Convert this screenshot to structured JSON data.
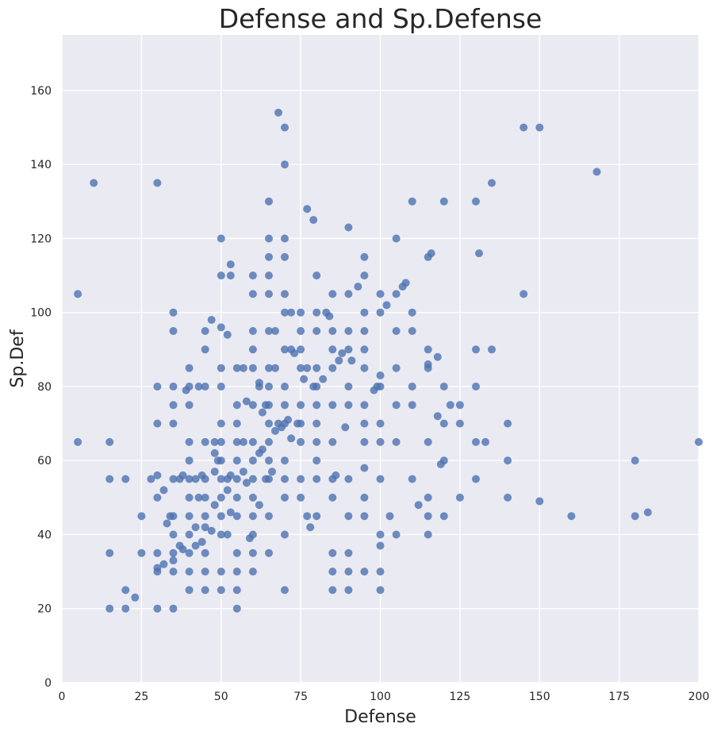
{
  "chart_data": {
    "type": "scatter",
    "title": "Defense and Sp.Defense",
    "xlabel": "Defense",
    "ylabel": "Sp.Def",
    "xlim": [
      0,
      200
    ],
    "ylim": [
      0,
      175
    ],
    "x_ticks": [
      0,
      25,
      50,
      75,
      100,
      125,
      150,
      175,
      200
    ],
    "y_ticks": [
      0,
      20,
      40,
      60,
      80,
      100,
      120,
      140,
      160
    ],
    "grid": true,
    "background": "#eaeaf2",
    "point_color": "#4c72b0",
    "points": [
      [
        5,
        105
      ],
      [
        5,
        65
      ],
      [
        10,
        135
      ],
      [
        15,
        65
      ],
      [
        15,
        55
      ],
      [
        15,
        35
      ],
      [
        15,
        20
      ],
      [
        20,
        55
      ],
      [
        20,
        25
      ],
      [
        20,
        20
      ],
      [
        23,
        23
      ],
      [
        25,
        45
      ],
      [
        25,
        35
      ],
      [
        28,
        55
      ],
      [
        30,
        135
      ],
      [
        30,
        80
      ],
      [
        30,
        70
      ],
      [
        30,
        56
      ],
      [
        30,
        50
      ],
      [
        30,
        35
      ],
      [
        30,
        31
      ],
      [
        30,
        30
      ],
      [
        30,
        20
      ],
      [
        32,
        32
      ],
      [
        32,
        52
      ],
      [
        33,
        43
      ],
      [
        34,
        45
      ],
      [
        35,
        100
      ],
      [
        35,
        95
      ],
      [
        35,
        80
      ],
      [
        35,
        75
      ],
      [
        35,
        70
      ],
      [
        35,
        55
      ],
      [
        35,
        45
      ],
      [
        35,
        40
      ],
      [
        35,
        35
      ],
      [
        35,
        33
      ],
      [
        35,
        30
      ],
      [
        35,
        20
      ],
      [
        37,
        55
      ],
      [
        37,
        37
      ],
      [
        38,
        56
      ],
      [
        38,
        36
      ],
      [
        39,
        79
      ],
      [
        40,
        85
      ],
      [
        40,
        80
      ],
      [
        40,
        75
      ],
      [
        40,
        65
      ],
      [
        40,
        60
      ],
      [
        40,
        55
      ],
      [
        40,
        50
      ],
      [
        40,
        45
      ],
      [
        40,
        40
      ],
      [
        40,
        35
      ],
      [
        40,
        30
      ],
      [
        40,
        25
      ],
      [
        42,
        55
      ],
      [
        42,
        42
      ],
      [
        42,
        37
      ],
      [
        43,
        80
      ],
      [
        43,
        50
      ],
      [
        44,
        56
      ],
      [
        44,
        38
      ],
      [
        45,
        95
      ],
      [
        45,
        90
      ],
      [
        45,
        80
      ],
      [
        45,
        65
      ],
      [
        45,
        55
      ],
      [
        45,
        50
      ],
      [
        45,
        45
      ],
      [
        45,
        42
      ],
      [
        45,
        35
      ],
      [
        45,
        30
      ],
      [
        45,
        25
      ],
      [
        47,
        98
      ],
      [
        47,
        41
      ],
      [
        48,
        62
      ],
      [
        48,
        57
      ],
      [
        48,
        48
      ],
      [
        48,
        65
      ],
      [
        49,
        60
      ],
      [
        50,
        120
      ],
      [
        50,
        110
      ],
      [
        50,
        96
      ],
      [
        50,
        85
      ],
      [
        50,
        80
      ],
      [
        50,
        70
      ],
      [
        50,
        65
      ],
      [
        50,
        60
      ],
      [
        50,
        55
      ],
      [
        50,
        50
      ],
      [
        50,
        45
      ],
      [
        50,
        40
      ],
      [
        50,
        30
      ],
      [
        50,
        25
      ],
      [
        52,
        94
      ],
      [
        52,
        55
      ],
      [
        52,
        52
      ],
      [
        52,
        40
      ],
      [
        53,
        113
      ],
      [
        53,
        110
      ],
      [
        53,
        56
      ],
      [
        53,
        46
      ],
      [
        55,
        85
      ],
      [
        55,
        75
      ],
      [
        55,
        70
      ],
      [
        55,
        65
      ],
      [
        55,
        60
      ],
      [
        55,
        55
      ],
      [
        55,
        50
      ],
      [
        55,
        45
      ],
      [
        55,
        35
      ],
      [
        55,
        30
      ],
      [
        55,
        25
      ],
      [
        55,
        20
      ],
      [
        57,
        85
      ],
      [
        57,
        65
      ],
      [
        57,
        57
      ],
      [
        58,
        76
      ],
      [
        58,
        54
      ],
      [
        59,
        39
      ],
      [
        60,
        110
      ],
      [
        60,
        105
      ],
      [
        60,
        95
      ],
      [
        60,
        90
      ],
      [
        60,
        85
      ],
      [
        60,
        75
      ],
      [
        60,
        65
      ],
      [
        60,
        60
      ],
      [
        60,
        55
      ],
      [
        60,
        50
      ],
      [
        60,
        45
      ],
      [
        60,
        40
      ],
      [
        60,
        35
      ],
      [
        60,
        30
      ],
      [
        62,
        81
      ],
      [
        62,
        80
      ],
      [
        62,
        62
      ],
      [
        62,
        48
      ],
      [
        63,
        73
      ],
      [
        63,
        63
      ],
      [
        64,
        75
      ],
      [
        64,
        55
      ],
      [
        65,
        130
      ],
      [
        65,
        120
      ],
      [
        65,
        115
      ],
      [
        65,
        110
      ],
      [
        65,
        105
      ],
      [
        65,
        95
      ],
      [
        65,
        85
      ],
      [
        65,
        80
      ],
      [
        65,
        75
      ],
      [
        65,
        70
      ],
      [
        65,
        65
      ],
      [
        65,
        60
      ],
      [
        65,
        55
      ],
      [
        65,
        45
      ],
      [
        65,
        35
      ],
      [
        66,
        57
      ],
      [
        67,
        95
      ],
      [
        67,
        85
      ],
      [
        67,
        68
      ],
      [
        68,
        154
      ],
      [
        68,
        70
      ],
      [
        69,
        69
      ],
      [
        70,
        150
      ],
      [
        70,
        140
      ],
      [
        70,
        120
      ],
      [
        70,
        115
      ],
      [
        70,
        105
      ],
      [
        70,
        100
      ],
      [
        70,
        90
      ],
      [
        70,
        80
      ],
      [
        70,
        75
      ],
      [
        70,
        70
      ],
      [
        70,
        60
      ],
      [
        70,
        55
      ],
      [
        70,
        50
      ],
      [
        70,
        40
      ],
      [
        70,
        25
      ],
      [
        71,
        71
      ],
      [
        72,
        100
      ],
      [
        72,
        90
      ],
      [
        72,
        66
      ],
      [
        73,
        89
      ],
      [
        74,
        70
      ],
      [
        75,
        100
      ],
      [
        75,
        95
      ],
      [
        75,
        90
      ],
      [
        75,
        85
      ],
      [
        75,
        75
      ],
      [
        75,
        70
      ],
      [
        75,
        65
      ],
      [
        75,
        55
      ],
      [
        75,
        50
      ],
      [
        76,
        82
      ],
      [
        77,
        128
      ],
      [
        77,
        85
      ],
      [
        77,
        45
      ],
      [
        78,
        42
      ],
      [
        79,
        125
      ],
      [
        79,
        80
      ],
      [
        80,
        110
      ],
      [
        80,
        100
      ],
      [
        80,
        95
      ],
      [
        80,
        85
      ],
      [
        80,
        80
      ],
      [
        80,
        75
      ],
      [
        80,
        70
      ],
      [
        80,
        65
      ],
      [
        80,
        60
      ],
      [
        80,
        55
      ],
      [
        80,
        45
      ],
      [
        82,
        82
      ],
      [
        83,
        100
      ],
      [
        84,
        99
      ],
      [
        85,
        105
      ],
      [
        85,
        95
      ],
      [
        85,
        90
      ],
      [
        85,
        85
      ],
      [
        85,
        75
      ],
      [
        85,
        65
      ],
      [
        85,
        55
      ],
      [
        85,
        50
      ],
      [
        85,
        35
      ],
      [
        85,
        30
      ],
      [
        85,
        25
      ],
      [
        86,
        56
      ],
      [
        87,
        87
      ],
      [
        88,
        89
      ],
      [
        89,
        69
      ],
      [
        90,
        123
      ],
      [
        90,
        105
      ],
      [
        90,
        95
      ],
      [
        90,
        90
      ],
      [
        90,
        80
      ],
      [
        90,
        75
      ],
      [
        90,
        55
      ],
      [
        90,
        45
      ],
      [
        90,
        35
      ],
      [
        90,
        30
      ],
      [
        90,
        25
      ],
      [
        91,
        87
      ],
      [
        93,
        107
      ],
      [
        95,
        115
      ],
      [
        95,
        110
      ],
      [
        95,
        100
      ],
      [
        95,
        95
      ],
      [
        95,
        90
      ],
      [
        95,
        85
      ],
      [
        95,
        75
      ],
      [
        95,
        70
      ],
      [
        95,
        65
      ],
      [
        95,
        58
      ],
      [
        95,
        50
      ],
      [
        95,
        45
      ],
      [
        95,
        30
      ],
      [
        98,
        79
      ],
      [
        99,
        80
      ],
      [
        100,
        105
      ],
      [
        100,
        100
      ],
      [
        100,
        83
      ],
      [
        100,
        80
      ],
      [
        100,
        70
      ],
      [
        100,
        65
      ],
      [
        100,
        55
      ],
      [
        100,
        40
      ],
      [
        100,
        37
      ],
      [
        100,
        30
      ],
      [
        100,
        25
      ],
      [
        102,
        102
      ],
      [
        103,
        45
      ],
      [
        105,
        120
      ],
      [
        105,
        105
      ],
      [
        105,
        95
      ],
      [
        105,
        85
      ],
      [
        105,
        75
      ],
      [
        105,
        65
      ],
      [
        105,
        40
      ],
      [
        107,
        107
      ],
      [
        108,
        108
      ],
      [
        110,
        130
      ],
      [
        110,
        100
      ],
      [
        110,
        95
      ],
      [
        110,
        80
      ],
      [
        110,
        75
      ],
      [
        110,
        55
      ],
      [
        112,
        48
      ],
      [
        115,
        115
      ],
      [
        115,
        90
      ],
      [
        115,
        86
      ],
      [
        115,
        85
      ],
      [
        115,
        65
      ],
      [
        115,
        50
      ],
      [
        115,
        45
      ],
      [
        115,
        40
      ],
      [
        116,
        116
      ],
      [
        118,
        88
      ],
      [
        118,
        72
      ],
      [
        119,
        59
      ],
      [
        120,
        130
      ],
      [
        120,
        80
      ],
      [
        120,
        70
      ],
      [
        120,
        60
      ],
      [
        120,
        45
      ],
      [
        122,
        75
      ],
      [
        125,
        75
      ],
      [
        125,
        70
      ],
      [
        125,
        50
      ],
      [
        130,
        130
      ],
      [
        130,
        90
      ],
      [
        130,
        80
      ],
      [
        130,
        65
      ],
      [
        130,
        55
      ],
      [
        131,
        116
      ],
      [
        133,
        65
      ],
      [
        135,
        135
      ],
      [
        135,
        90
      ],
      [
        140,
        70
      ],
      [
        140,
        60
      ],
      [
        140,
        50
      ],
      [
        145,
        150
      ],
      [
        145,
        105
      ],
      [
        150,
        150
      ],
      [
        150,
        49
      ],
      [
        160,
        45
      ],
      [
        168,
        138
      ],
      [
        180,
        60
      ],
      [
        180,
        45
      ],
      [
        184,
        46
      ],
      [
        200,
        65
      ]
    ]
  }
}
